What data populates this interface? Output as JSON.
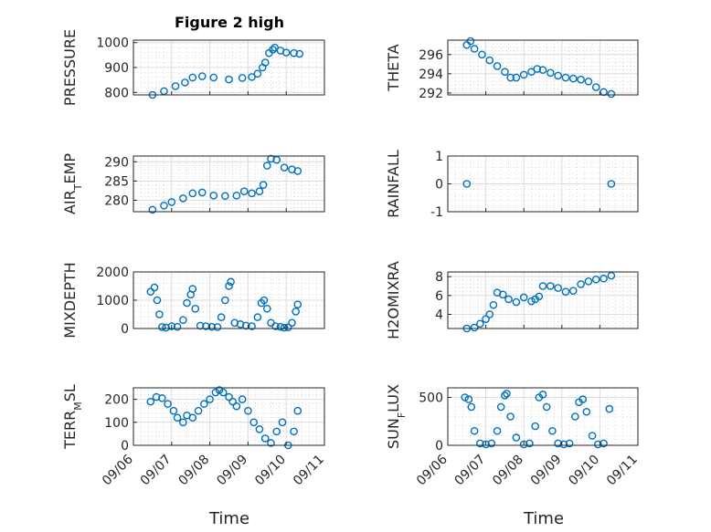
{
  "figure": {
    "title": "Figure 2 high",
    "xlabel": "Time",
    "x_ticks": [
      "09/06",
      "09/07",
      "09/08",
      "09/09",
      "09/10",
      "09/11"
    ],
    "marker_color": "#0072BD"
  },
  "chart_data": [
    {
      "type": "scatter",
      "ylabel": "PRESSURE",
      "ylim": [
        790,
        1010
      ],
      "y_ticks": [
        800,
        900,
        1000
      ],
      "xlim": [
        0,
        5
      ],
      "grid": true,
      "series": [
        {
          "x": [
            0.5,
            0.8,
            1.1,
            1.35,
            1.55,
            1.8,
            2.1,
            2.5,
            2.85,
            3.1,
            3.25,
            3.38,
            3.45,
            3.55,
            3.65,
            3.7,
            3.85,
            4.0,
            4.2,
            4.35
          ],
          "y": [
            790,
            805,
            825,
            840,
            860,
            865,
            860,
            852,
            858,
            862,
            875,
            900,
            920,
            958,
            972,
            980,
            968,
            960,
            958,
            955
          ]
        }
      ]
    },
    {
      "type": "scatter",
      "ylabel": "THETA",
      "ylim": [
        291.8,
        297.5
      ],
      "y_ticks": [
        292,
        294,
        296
      ],
      "xlim": [
        0,
        5
      ],
      "grid": true,
      "series": [
        {
          "x": [
            0.5,
            0.6,
            0.7,
            0.9,
            1.1,
            1.3,
            1.5,
            1.65,
            1.8,
            2.0,
            2.2,
            2.35,
            2.5,
            2.7,
            2.9,
            3.1,
            3.3,
            3.5,
            3.7,
            3.9,
            4.1,
            4.3
          ],
          "y": [
            297.0,
            297.4,
            296.6,
            296.0,
            295.4,
            294.8,
            294.2,
            293.6,
            293.6,
            293.9,
            294.2,
            294.5,
            294.4,
            294.1,
            293.8,
            293.6,
            293.5,
            293.4,
            293.2,
            292.6,
            292.1,
            291.9
          ]
        }
      ]
    },
    {
      "type": "scatter",
      "ylabel": "AIR_TEMP",
      "ylim": [
        277,
        291.5
      ],
      "y_ticks": [
        280,
        285,
        290
      ],
      "xlim": [
        0,
        5
      ],
      "grid": true,
      "series": [
        {
          "x": [
            0.5,
            0.8,
            1.0,
            1.3,
            1.55,
            1.8,
            2.1,
            2.4,
            2.7,
            2.9,
            3.1,
            3.3,
            3.4,
            3.5,
            3.6,
            3.75,
            3.95,
            4.15,
            4.3
          ],
          "y": [
            277.5,
            278.6,
            279.5,
            280.5,
            281.8,
            282.0,
            281.2,
            281.1,
            281.2,
            282.3,
            281.8,
            282.3,
            284.0,
            289.0,
            290.8,
            290.5,
            288.5,
            288.0,
            287.6
          ]
        }
      ]
    },
    {
      "type": "scatter",
      "ylabel": "RAINFALL",
      "ylim": [
        -1,
        1
      ],
      "y_ticks": [
        -1,
        0,
        1
      ],
      "xlim": [
        0,
        5
      ],
      "grid": true,
      "series": [
        {
          "x": [
            0.5,
            4.3
          ],
          "y": [
            0,
            0
          ]
        }
      ]
    },
    {
      "type": "scatter",
      "ylabel": "MIXDEPTH",
      "ylim": [
        0,
        2000
      ],
      "y_ticks": [
        0,
        1000,
        2000
      ],
      "xlim": [
        0,
        5
      ],
      "grid": true,
      "series": [
        {
          "x": [
            0.45,
            0.55,
            0.62,
            0.68,
            0.75,
            0.85,
            1.0,
            1.15,
            1.3,
            1.4,
            1.5,
            1.55,
            1.62,
            1.75,
            1.9,
            2.05,
            2.2,
            2.3,
            2.4,
            2.5,
            2.55,
            2.65,
            2.8,
            2.95,
            3.1,
            3.25,
            3.35,
            3.42,
            3.5,
            3.6,
            3.72,
            3.85,
            3.95,
            4.05,
            4.15,
            4.25,
            4.3
          ],
          "y": [
            1300,
            1450,
            1000,
            500,
            50,
            30,
            80,
            60,
            300,
            900,
            1200,
            1400,
            700,
            100,
            80,
            60,
            50,
            400,
            1000,
            1500,
            1650,
            200,
            150,
            100,
            80,
            400,
            900,
            1000,
            700,
            200,
            80,
            60,
            30,
            40,
            200,
            600,
            850
          ]
        }
      ]
    },
    {
      "type": "scatter",
      "ylabel": "H2OMIXRA",
      "ylim": [
        2.5,
        8.5
      ],
      "y_ticks": [
        4,
        6,
        8
      ],
      "xlim": [
        0,
        5
      ],
      "grid": true,
      "series": [
        {
          "x": [
            0.5,
            0.7,
            0.85,
            1.0,
            1.1,
            1.2,
            1.3,
            1.45,
            1.6,
            1.8,
            2.0,
            2.2,
            2.3,
            2.4,
            2.5,
            2.7,
            2.9,
            3.1,
            3.3,
            3.5,
            3.7,
            3.9,
            4.1,
            4.3
          ],
          "y": [
            2.5,
            2.6,
            3.0,
            3.5,
            4.0,
            5.0,
            6.3,
            6.1,
            5.6,
            5.3,
            5.8,
            5.4,
            5.6,
            5.9,
            7.0,
            7.0,
            6.8,
            6.4,
            6.5,
            7.2,
            7.5,
            7.7,
            7.8,
            8.1
          ]
        }
      ]
    },
    {
      "type": "scatter",
      "ylabel": "TERR_MSL",
      "ylim": [
        0,
        250
      ],
      "y_ticks": [
        0,
        100,
        200
      ],
      "xlim": [
        0,
        5
      ],
      "grid": true,
      "series": [
        {
          "x": [
            0.45,
            0.6,
            0.75,
            0.9,
            1.05,
            1.15,
            1.3,
            1.4,
            1.55,
            1.7,
            1.85,
            2.0,
            2.15,
            2.25,
            2.35,
            2.5,
            2.6,
            2.7,
            2.85,
            3.0,
            3.15,
            3.3,
            3.45,
            3.6,
            3.75,
            3.9,
            4.05,
            4.2,
            4.3
          ],
          "y": [
            190,
            210,
            205,
            180,
            150,
            120,
            100,
            130,
            120,
            150,
            180,
            200,
            230,
            240,
            230,
            210,
            190,
            170,
            200,
            150,
            100,
            70,
            30,
            10,
            60,
            100,
            0,
            60,
            150
          ]
        }
      ]
    },
    {
      "type": "scatter",
      "ylabel": "SUN_FLUX",
      "ylim": [
        0,
        600
      ],
      "y_ticks": [
        0,
        500
      ],
      "xlim": [
        0,
        5
      ],
      "grid": true,
      "series": [
        {
          "x": [
            0.45,
            0.55,
            0.62,
            0.7,
            0.85,
            1.0,
            1.15,
            1.3,
            1.4,
            1.5,
            1.55,
            1.65,
            1.8,
            2.0,
            2.15,
            2.3,
            2.4,
            2.5,
            2.6,
            2.75,
            2.9,
            3.05,
            3.2,
            3.35,
            3.45,
            3.55,
            3.65,
            3.8,
            3.95,
            4.1,
            4.25
          ],
          "y": [
            500,
            480,
            400,
            150,
            20,
            10,
            20,
            150,
            400,
            520,
            540,
            300,
            80,
            10,
            20,
            200,
            500,
            530,
            400,
            150,
            20,
            10,
            20,
            300,
            450,
            480,
            350,
            100,
            10,
            20,
            380
          ]
        }
      ]
    }
  ]
}
